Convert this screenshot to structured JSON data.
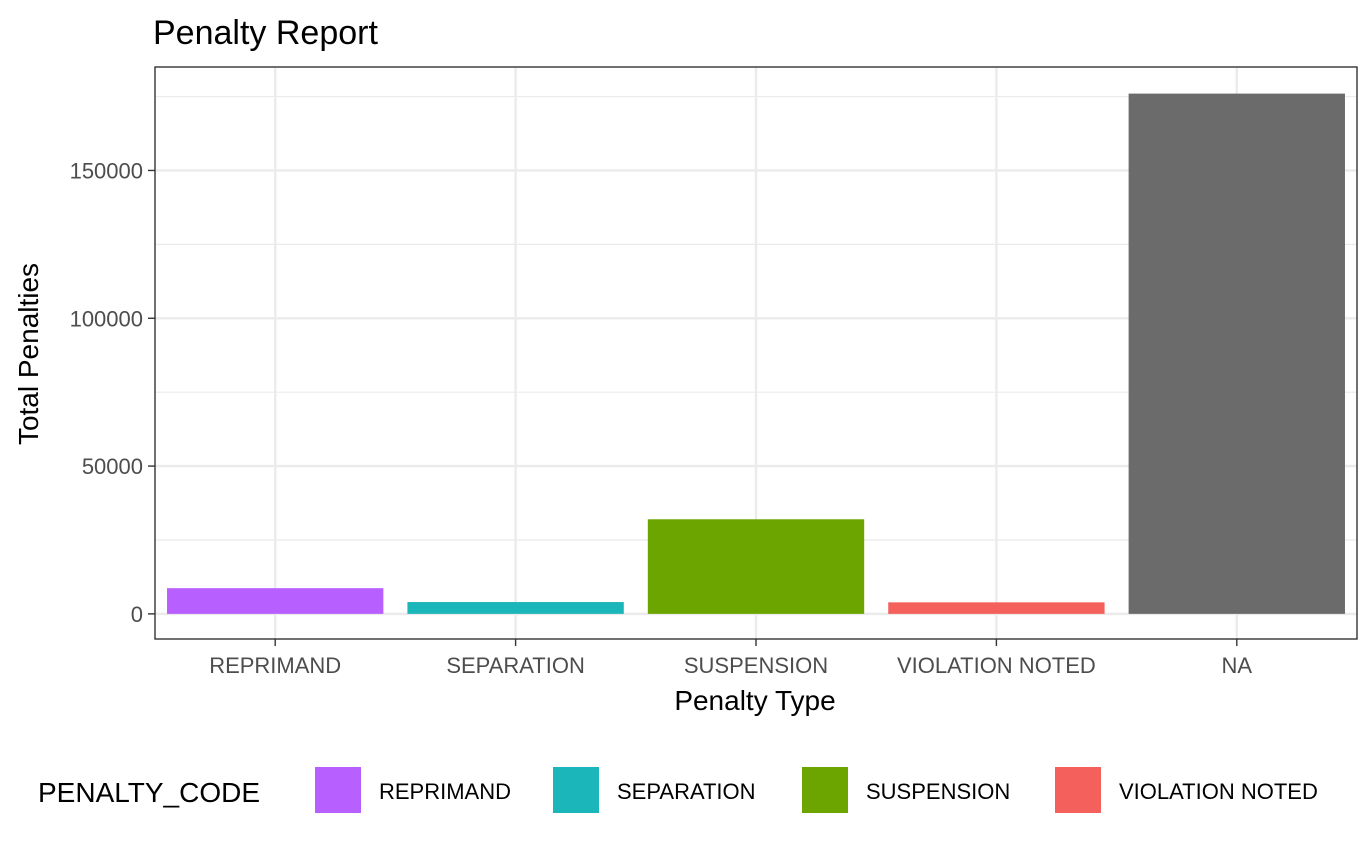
{
  "chart_data": {
    "type": "bar",
    "title": "Penalty Report",
    "xlabel": "Penalty Type",
    "ylabel": "Total Penalties",
    "categories": [
      "REPRIMAND",
      "SEPARATION",
      "SUSPENSION",
      "VIOLATION NOTED",
      "NA"
    ],
    "values": [
      8700,
      4000,
      32000,
      3900,
      176000
    ],
    "colors": [
      "#B75FFF",
      "#1BB6B9",
      "#6CA500",
      "#F4615C",
      "#6B6B6B"
    ],
    "ylim": [
      -8500,
      185000
    ],
    "yticks": [
      0,
      50000,
      100000,
      150000
    ],
    "ytick_labels": [
      "0",
      "50000",
      "100000",
      "150000"
    ],
    "grid": true,
    "legend": {
      "title": "PENALTY_CODE",
      "position": "bottom",
      "entries": [
        {
          "label": "REPRIMAND",
          "color": "#B75FFF"
        },
        {
          "label": "SEPARATION",
          "color": "#1BB6B9"
        },
        {
          "label": "SUSPENSION",
          "color": "#6CA500"
        },
        {
          "label": "VIOLATION NOTED",
          "color": "#F4615C"
        }
      ]
    }
  }
}
